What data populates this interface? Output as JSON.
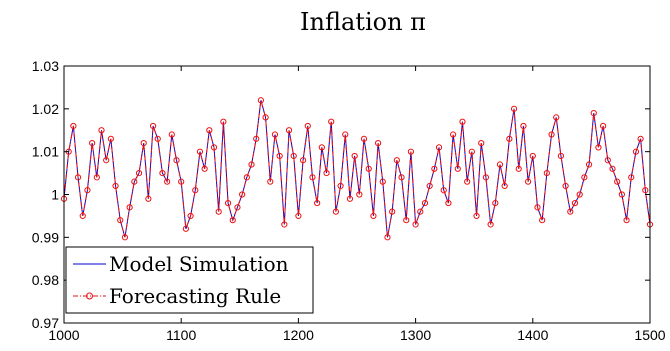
{
  "chart_data": {
    "type": "line",
    "title": "Inflation π",
    "xlabel": "",
    "ylabel": "",
    "xlim": [
      1000,
      1500
    ],
    "ylim": [
      0.97,
      1.03
    ],
    "x_ticks": [
      1000,
      1100,
      1200,
      1300,
      1400,
      1500
    ],
    "x_tick_labels": [
      "1000",
      "1100",
      "1200",
      "1300",
      "1400",
      "1500"
    ],
    "y_ticks": [
      0.97,
      0.98,
      0.99,
      1.0,
      1.01,
      1.02,
      1.03
    ],
    "y_tick_labels": [
      "0.97",
      "0.98",
      "0.99",
      "1",
      "1.01",
      "1.02",
      "1.03"
    ],
    "grid": false,
    "legend_position": "bottom-left",
    "x": [
      1000,
      1004,
      1008,
      1012,
      1016,
      1020,
      1024,
      1028,
      1032,
      1036,
      1040,
      1044,
      1048,
      1052,
      1056,
      1060,
      1064,
      1068,
      1072,
      1076,
      1080,
      1084,
      1088,
      1092,
      1096,
      1100,
      1104,
      1108,
      1112,
      1116,
      1120,
      1124,
      1128,
      1132,
      1136,
      1140,
      1144,
      1148,
      1152,
      1156,
      1160,
      1164,
      1168,
      1172,
      1176,
      1180,
      1184,
      1188,
      1192,
      1196,
      1200,
      1204,
      1208,
      1212,
      1216,
      1220,
      1224,
      1228,
      1232,
      1236,
      1240,
      1244,
      1248,
      1252,
      1256,
      1260,
      1264,
      1268,
      1272,
      1276,
      1280,
      1284,
      1288,
      1292,
      1296,
      1300,
      1304,
      1308,
      1312,
      1316,
      1320,
      1324,
      1328,
      1332,
      1336,
      1340,
      1344,
      1348,
      1352,
      1356,
      1360,
      1364,
      1368,
      1372,
      1376,
      1380,
      1384,
      1388,
      1392,
      1396,
      1400,
      1404,
      1408,
      1412,
      1416,
      1420,
      1424,
      1428,
      1432,
      1436,
      1440,
      1444,
      1448,
      1452,
      1456,
      1460,
      1464,
      1468,
      1472,
      1476,
      1480,
      1484,
      1488,
      1492,
      1496,
      1500
    ],
    "series": [
      {
        "name": "Model Simulation",
        "color": "#0000cc",
        "style": "solid",
        "values": [
          0.999,
          1.01,
          1.016,
          1.004,
          0.995,
          1.001,
          1.012,
          1.004,
          1.015,
          1.008,
          1.013,
          1.002,
          0.994,
          0.99,
          0.997,
          1.003,
          1.005,
          1.012,
          0.999,
          1.016,
          1.013,
          1.005,
          1.003,
          1.014,
          1.008,
          1.003,
          0.992,
          0.995,
          1.001,
          1.01,
          1.006,
          1.015,
          1.011,
          0.996,
          1.017,
          0.998,
          0.994,
          0.997,
          1.0,
          1.004,
          1.007,
          1.013,
          1.022,
          1.018,
          1.003,
          1.014,
          1.009,
          0.993,
          1.015,
          1.009,
          0.995,
          1.008,
          1.016,
          1.004,
          0.998,
          1.011,
          1.005,
          1.017,
          0.996,
          1.002,
          1.014,
          0.999,
          1.009,
          1.0,
          1.013,
          1.006,
          0.995,
          1.012,
          1.003,
          0.99,
          0.996,
          1.008,
          1.004,
          0.994,
          1.01,
          0.993,
          0.996,
          0.998,
          1.002,
          1.006,
          1.011,
          1.001,
          0.998,
          1.014,
          1.006,
          1.017,
          1.003,
          1.01,
          0.995,
          1.012,
          1.004,
          0.993,
          0.998,
          1.007,
          1.002,
          1.013,
          1.02,
          1.006,
          1.016,
          1.003,
          1.009,
          0.997,
          0.994,
          1.005,
          1.014,
          1.018,
          1.009,
          1.002,
          0.996,
          0.998,
          1.0,
          1.004,
          1.007,
          1.019,
          1.011,
          1.016,
          1.008,
          1.006,
          1.003,
          1.0,
          0.994,
          1.004,
          1.01,
          1.013,
          1.001,
          0.993
        ]
      },
      {
        "name": "Forecasting Rule",
        "color": "#ee1111",
        "style": "dash-dot with circle markers",
        "values": [
          0.999,
          1.01,
          1.016,
          1.004,
          0.995,
          1.001,
          1.012,
          1.004,
          1.015,
          1.008,
          1.013,
          1.002,
          0.994,
          0.99,
          0.997,
          1.003,
          1.005,
          1.012,
          0.999,
          1.016,
          1.013,
          1.005,
          1.003,
          1.014,
          1.008,
          1.003,
          0.992,
          0.995,
          1.001,
          1.01,
          1.006,
          1.015,
          1.011,
          0.996,
          1.017,
          0.998,
          0.994,
          0.997,
          1.0,
          1.004,
          1.007,
          1.013,
          1.022,
          1.018,
          1.003,
          1.014,
          1.009,
          0.993,
          1.015,
          1.009,
          0.995,
          1.008,
          1.016,
          1.004,
          0.998,
          1.011,
          1.005,
          1.017,
          0.996,
          1.002,
          1.014,
          0.999,
          1.009,
          1.0,
          1.013,
          1.006,
          0.995,
          1.012,
          1.003,
          0.99,
          0.996,
          1.008,
          1.004,
          0.994,
          1.01,
          0.993,
          0.996,
          0.998,
          1.002,
          1.006,
          1.011,
          1.001,
          0.998,
          1.014,
          1.006,
          1.017,
          1.003,
          1.01,
          0.995,
          1.012,
          1.004,
          0.993,
          0.998,
          1.007,
          1.002,
          1.013,
          1.02,
          1.006,
          1.016,
          1.003,
          1.009,
          0.997,
          0.994,
          1.005,
          1.014,
          1.018,
          1.009,
          1.002,
          0.996,
          0.998,
          1.0,
          1.004,
          1.007,
          1.019,
          1.011,
          1.016,
          1.008,
          1.006,
          1.003,
          1.0,
          0.994,
          1.004,
          1.01,
          1.013,
          1.001,
          0.993
        ]
      }
    ]
  }
}
